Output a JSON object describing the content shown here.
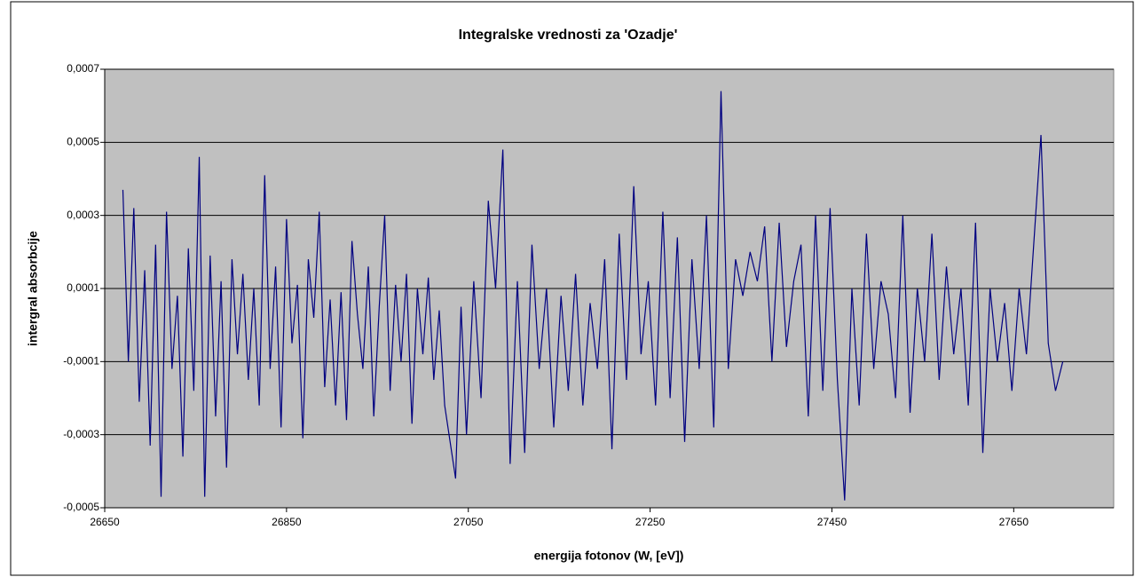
{
  "chart_data": {
    "type": "line",
    "title": "Integralske vrednosti za 'Ozadje'",
    "x_label": "energija fotonov (W, [eV])",
    "y_label": "intergral absorbcije",
    "x": [
      26670,
      26676,
      26682,
      26688,
      26694,
      26700,
      26706,
      26712,
      26718,
      26724,
      26730,
      26736,
      26742,
      26748,
      26754,
      26760,
      26766,
      26772,
      26778,
      26784,
      26790,
      26796,
      26802,
      26808,
      26814,
      26820,
      26826,
      26832,
      26838,
      26844,
      26850,
      26856,
      26862,
      26868,
      26874,
      26880,
      26886,
      26892,
      26898,
      26904,
      26910,
      26916,
      26922,
      26928,
      26934,
      26940,
      26946,
      26952,
      26958,
      26964,
      26970,
      26976,
      26982,
      26988,
      26994,
      27000,
      27006,
      27012,
      27018,
      27024,
      27030,
      27036,
      27042,
      27048,
      27056,
      27064,
      27072,
      27080,
      27088,
      27096,
      27104,
      27112,
      27120,
      27128,
      27136,
      27144,
      27152,
      27160,
      27168,
      27176,
      27184,
      27192,
      27200,
      27208,
      27216,
      27224,
      27232,
      27240,
      27248,
      27256,
      27264,
      27272,
      27280,
      27288,
      27296,
      27304,
      27312,
      27320,
      27328,
      27336,
      27344,
      27352,
      27360,
      27368,
      27376,
      27384,
      27392,
      27400,
      27408,
      27416,
      27424,
      27432,
      27440,
      27448,
      27456,
      27464,
      27472,
      27480,
      27488,
      27496,
      27504,
      27512,
      27520,
      27528,
      27536,
      27544,
      27552,
      27560,
      27568,
      27576,
      27584,
      27592,
      27600,
      27608,
      27616,
      27624,
      27632,
      27640,
      27648,
      27656,
      27664,
      27672,
      27680,
      27688,
      27696,
      27704
    ],
    "series": [
      {
        "color": "#000080",
        "values": [
          0.00037,
          -0.0001,
          0.00032,
          -0.00021,
          0.00015,
          -0.00033,
          0.00022,
          -0.00047,
          0.00031,
          -0.00012,
          8e-05,
          -0.00036,
          0.00021,
          -0.00018,
          0.00046,
          -0.00047,
          0.00019,
          -0.00025,
          0.00012,
          -0.00039,
          0.00018,
          -8e-05,
          0.00014,
          -0.00015,
          0.0001,
          -0.00022,
          0.00041,
          -0.00012,
          0.00016,
          -0.00028,
          0.00029,
          -5e-05,
          0.00011,
          -0.00031,
          0.00018,
          2e-05,
          0.00031,
          -0.00017,
          7e-05,
          -0.00022,
          9e-05,
          -0.00026,
          0.00023,
          3e-05,
          -0.00012,
          0.00016,
          -0.00025,
          5e-05,
          0.0003,
          -0.00018,
          0.00011,
          -0.0001,
          0.00014,
          -0.00027,
          0.0001,
          -8e-05,
          0.00013,
          -0.00015,
          4e-05,
          -0.00022,
          -0.00032,
          -0.00042,
          5e-05,
          -0.0003,
          0.00012,
          -0.0002,
          0.00034,
          0.0001,
          0.00048,
          -0.00038,
          0.00012,
          -0.00035,
          0.00022,
          -0.00012,
          0.0001,
          -0.00028,
          8e-05,
          -0.00018,
          0.00014,
          -0.00022,
          6e-05,
          -0.00012,
          0.00018,
          -0.00034,
          0.00025,
          -0.00015,
          0.00038,
          -8e-05,
          0.00012,
          -0.00022,
          0.00031,
          -0.0002,
          0.00024,
          -0.00032,
          0.00018,
          -0.00012,
          0.0003,
          -0.00028,
          0.00064,
          -0.00012,
          0.00018,
          8e-05,
          0.0002,
          0.00012,
          0.00027,
          -0.0001,
          0.00028,
          -6e-05,
          0.00012,
          0.00022,
          -0.00025,
          0.0003,
          -0.00018,
          0.00032,
          -0.00015,
          -0.00048,
          0.0001,
          -0.00022,
          0.00025,
          -0.00012,
          0.00012,
          3e-05,
          -0.0002,
          0.0003,
          -0.00024,
          0.0001,
          -0.0001,
          0.00025,
          -0.00015,
          0.00016,
          -8e-05,
          0.0001,
          -0.00022,
          0.00028,
          -0.00035,
          0.0001,
          -0.0001,
          6e-05,
          -0.00018,
          0.0001,
          -8e-05,
          0.00022,
          0.00052,
          -5e-05,
          -0.00018,
          -0.0001
        ]
      }
    ],
    "xlim": [
      26650,
      27760
    ],
    "xticks": [
      26650,
      26850,
      27050,
      27250,
      27450,
      27650
    ],
    "ylim": [
      -0.0005,
      0.0007
    ],
    "yticks": [
      {
        "value": 0.0007,
        "label": "0,0007"
      },
      {
        "value": 0.0005,
        "label": "0,0005"
      },
      {
        "value": 0.0003,
        "label": "0,0003"
      },
      {
        "value": 0.0001,
        "label": "0,0001"
      },
      {
        "value": -0.0001,
        "label": "-0,0001"
      },
      {
        "value": -0.0003,
        "label": "-0,0003"
      },
      {
        "value": -0.0005,
        "label": "-0,0005"
      }
    ],
    "grid": true,
    "plot_background": "#c0c0c0"
  }
}
